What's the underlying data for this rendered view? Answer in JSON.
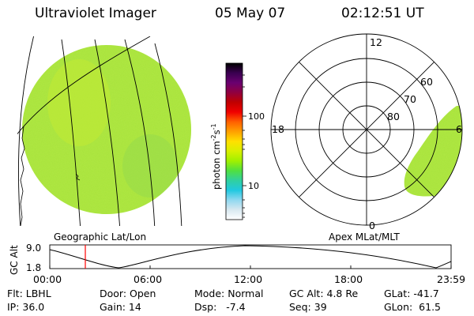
{
  "header": {
    "instrument": "Ultraviolet Imager",
    "date": "05 May 07",
    "time": "02:12:51 UT"
  },
  "left_panel": {
    "label": "Geographic Lat/Lon"
  },
  "right_panel": {
    "label": "Apex MLat/MLT",
    "mlt_labels": [
      "12",
      "18",
      "6",
      "0"
    ],
    "mlat_labels": [
      "60",
      "70",
      "80"
    ]
  },
  "colorbar": {
    "unit": "photon cm",
    "exp1": "-2",
    "s": "s",
    "exp2": "-1",
    "ticks": [
      "100",
      "10"
    ],
    "scale": "log",
    "colors": [
      "#000000",
      "#3a0050",
      "#6a0070",
      "#900040",
      "#c00000",
      "#f00000",
      "#ff6000",
      "#ffa000",
      "#ffe000",
      "#d8f000",
      "#a0f000",
      "#50e040",
      "#30d0a0",
      "#20c8e0",
      "#90d8f0",
      "#d8e8f0",
      "#ffffff"
    ]
  },
  "timeline": {
    "ylabel": "GC Alt",
    "y_ticks": [
      "9.0",
      "1.8"
    ],
    "x_ticks": [
      "00:00",
      "06:00",
      "12:00",
      "18:00",
      "23:59"
    ],
    "current_time_hours": 2.214
  },
  "info": {
    "flt": "Flt: LBHL",
    "ip": "IP: 36.0",
    "door": "Door: Open",
    "gain": "Gain: 14",
    "mode": "Mode: Normal",
    "dsp": "Dsp:   -7.4",
    "gcalt": "GC Alt: 4.8 Re",
    "seq": "Seq: 39",
    "glat": "GLat: -41.7",
    "glon": "GLon:  61.5"
  },
  "colors": {
    "image_green": "#a8e43c",
    "marker_red": "#ff0000"
  }
}
